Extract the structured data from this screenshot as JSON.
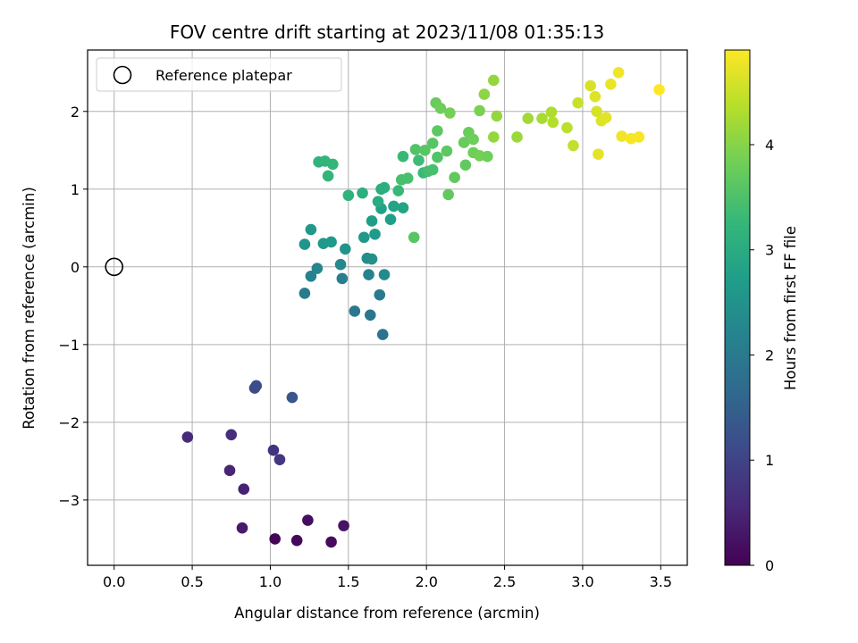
{
  "chart_data": {
    "type": "scatter",
    "title": "FOV centre drift starting at 2023/11/08 01:35:13",
    "xlabel": "Angular distance from reference (arcmin)",
    "ylabel": "Rotation from reference (arcmin)",
    "xlim": [
      -0.17,
      3.67
    ],
    "ylim": [
      -3.84,
      2.79
    ],
    "xticks": [
      0.0,
      0.5,
      1.0,
      1.5,
      2.0,
      2.5,
      3.0,
      3.5
    ],
    "xtick_labels": [
      "0.0",
      "0.5",
      "1.0",
      "1.5",
      "2.0",
      "2.5",
      "3.0",
      "3.5"
    ],
    "yticks": [
      -3,
      -2,
      -1,
      0,
      1,
      2
    ],
    "ytick_labels": [
      "−3",
      "−2",
      "−1",
      "0",
      "1",
      "2"
    ],
    "grid": true,
    "colormap": "viridis",
    "colorbar": {
      "label": "Hours from first FF file",
      "range": [
        0,
        4.9
      ],
      "ticks": [
        0,
        1,
        2,
        3,
        4
      ],
      "tick_labels": [
        "0",
        "1",
        "2",
        "3",
        "4"
      ]
    },
    "legend": {
      "position": "top-left",
      "entries": [
        "Reference platepar"
      ]
    },
    "reference_point": {
      "name": "Reference platepar",
      "x": 0.0,
      "y": 0.0,
      "marker": "open-circle"
    },
    "series": [
      {
        "points": [
          [
            1.03,
            -3.5,
            0.05
          ],
          [
            1.17,
            -3.52,
            0.1
          ],
          [
            1.39,
            -3.54,
            0.15
          ],
          [
            1.24,
            -3.26,
            0.2
          ],
          [
            1.47,
            -3.33,
            0.25
          ],
          [
            0.82,
            -3.36,
            0.35
          ],
          [
            0.83,
            -2.86,
            0.45
          ],
          [
            0.74,
            -2.62,
            0.5
          ],
          [
            0.47,
            -2.19,
            0.6
          ],
          [
            0.75,
            -2.16,
            0.65
          ],
          [
            1.02,
            -2.36,
            0.75
          ],
          [
            1.06,
            -2.48,
            0.8
          ],
          [
            0.9,
            -1.56,
            1.1
          ],
          [
            0.91,
            -1.53,
            1.15
          ],
          [
            1.14,
            -1.68,
            1.3
          ],
          [
            1.72,
            -0.87,
            1.85
          ],
          [
            1.64,
            -0.62,
            1.9
          ],
          [
            1.54,
            -0.57,
            1.95
          ],
          [
            1.22,
            -0.34,
            2.0
          ],
          [
            1.7,
            -0.36,
            2.05
          ],
          [
            1.46,
            -0.15,
            2.1
          ],
          [
            1.26,
            -0.12,
            2.15
          ],
          [
            1.63,
            -0.1,
            2.2
          ],
          [
            1.3,
            -0.02,
            2.25
          ],
          [
            1.45,
            0.03,
            2.3
          ],
          [
            1.73,
            -0.1,
            2.35
          ],
          [
            1.62,
            0.11,
            2.4
          ],
          [
            1.65,
            0.1,
            2.45
          ],
          [
            1.48,
            0.23,
            2.5
          ],
          [
            1.22,
            0.29,
            2.55
          ],
          [
            1.34,
            0.3,
            2.6
          ],
          [
            1.39,
            0.32,
            2.65
          ],
          [
            1.26,
            0.48,
            2.6
          ],
          [
            1.6,
            0.38,
            2.6
          ],
          [
            1.67,
            0.42,
            2.65
          ],
          [
            1.65,
            0.59,
            2.7
          ],
          [
            1.77,
            0.61,
            2.75
          ],
          [
            1.71,
            0.75,
            2.8
          ],
          [
            1.79,
            0.78,
            2.85
          ],
          [
            1.85,
            0.76,
            2.85
          ],
          [
            1.92,
            0.38,
            3.6
          ],
          [
            1.59,
            0.95,
            3.1
          ],
          [
            1.69,
            0.84,
            3.0
          ],
          [
            1.71,
            1.0,
            3.05
          ],
          [
            1.73,
            1.02,
            3.1
          ],
          [
            1.5,
            0.92,
            3.15
          ],
          [
            1.82,
            0.98,
            3.3
          ],
          [
            1.31,
            1.35,
            3.15
          ],
          [
            1.35,
            1.36,
            3.2
          ],
          [
            1.4,
            1.32,
            3.25
          ],
          [
            1.37,
            1.17,
            3.2
          ],
          [
            1.84,
            1.12,
            3.45
          ],
          [
            1.88,
            1.14,
            3.45
          ],
          [
            1.85,
            1.42,
            3.3
          ],
          [
            1.95,
            1.37,
            3.35
          ],
          [
            1.98,
            1.21,
            3.3
          ],
          [
            2.01,
            1.23,
            3.4
          ],
          [
            2.04,
            1.25,
            3.45
          ],
          [
            1.93,
            1.51,
            3.55
          ],
          [
            1.99,
            1.5,
            3.6
          ],
          [
            2.07,
            1.41,
            3.55
          ],
          [
            2.04,
            1.59,
            3.6
          ],
          [
            2.13,
            1.49,
            3.65
          ],
          [
            2.14,
            0.93,
            3.7
          ],
          [
            2.18,
            1.15,
            3.7
          ],
          [
            2.07,
            1.75,
            3.65
          ],
          [
            2.24,
            1.6,
            3.75
          ],
          [
            2.25,
            1.31,
            3.7
          ],
          [
            2.27,
            1.73,
            3.75
          ],
          [
            2.3,
            1.64,
            3.8
          ],
          [
            2.3,
            1.47,
            3.8
          ],
          [
            2.34,
            1.43,
            3.85
          ],
          [
            2.39,
            1.42,
            3.8
          ],
          [
            2.06,
            2.11,
            3.75
          ],
          [
            2.09,
            2.04,
            3.8
          ],
          [
            2.15,
            1.98,
            3.85
          ],
          [
            2.34,
            2.01,
            3.9
          ],
          [
            2.43,
            1.67,
            4.1
          ],
          [
            2.45,
            1.94,
            4.1
          ],
          [
            2.58,
            1.67,
            4.15
          ],
          [
            2.65,
            1.91,
            4.2
          ],
          [
            2.74,
            1.91,
            4.25
          ],
          [
            2.8,
            1.99,
            4.3
          ],
          [
            2.81,
            1.86,
            4.35
          ],
          [
            2.9,
            1.79,
            4.4
          ],
          [
            2.94,
            1.56,
            4.45
          ],
          [
            2.97,
            2.11,
            4.5
          ],
          [
            2.37,
            2.22,
            4.05
          ],
          [
            2.43,
            2.4,
            4.1
          ],
          [
            3.05,
            2.33,
            4.6
          ],
          [
            3.08,
            2.19,
            4.65
          ],
          [
            3.09,
            2.0,
            4.6
          ],
          [
            3.12,
            1.88,
            4.65
          ],
          [
            3.15,
            1.92,
            4.7
          ],
          [
            3.18,
            2.35,
            4.75
          ],
          [
            3.23,
            2.5,
            4.8
          ],
          [
            3.1,
            1.45,
            4.7
          ],
          [
            3.25,
            1.68,
            4.8
          ],
          [
            3.31,
            1.65,
            4.85
          ],
          [
            3.36,
            1.67,
            4.85
          ],
          [
            3.49,
            2.28,
            4.9
          ]
        ]
      }
    ]
  }
}
